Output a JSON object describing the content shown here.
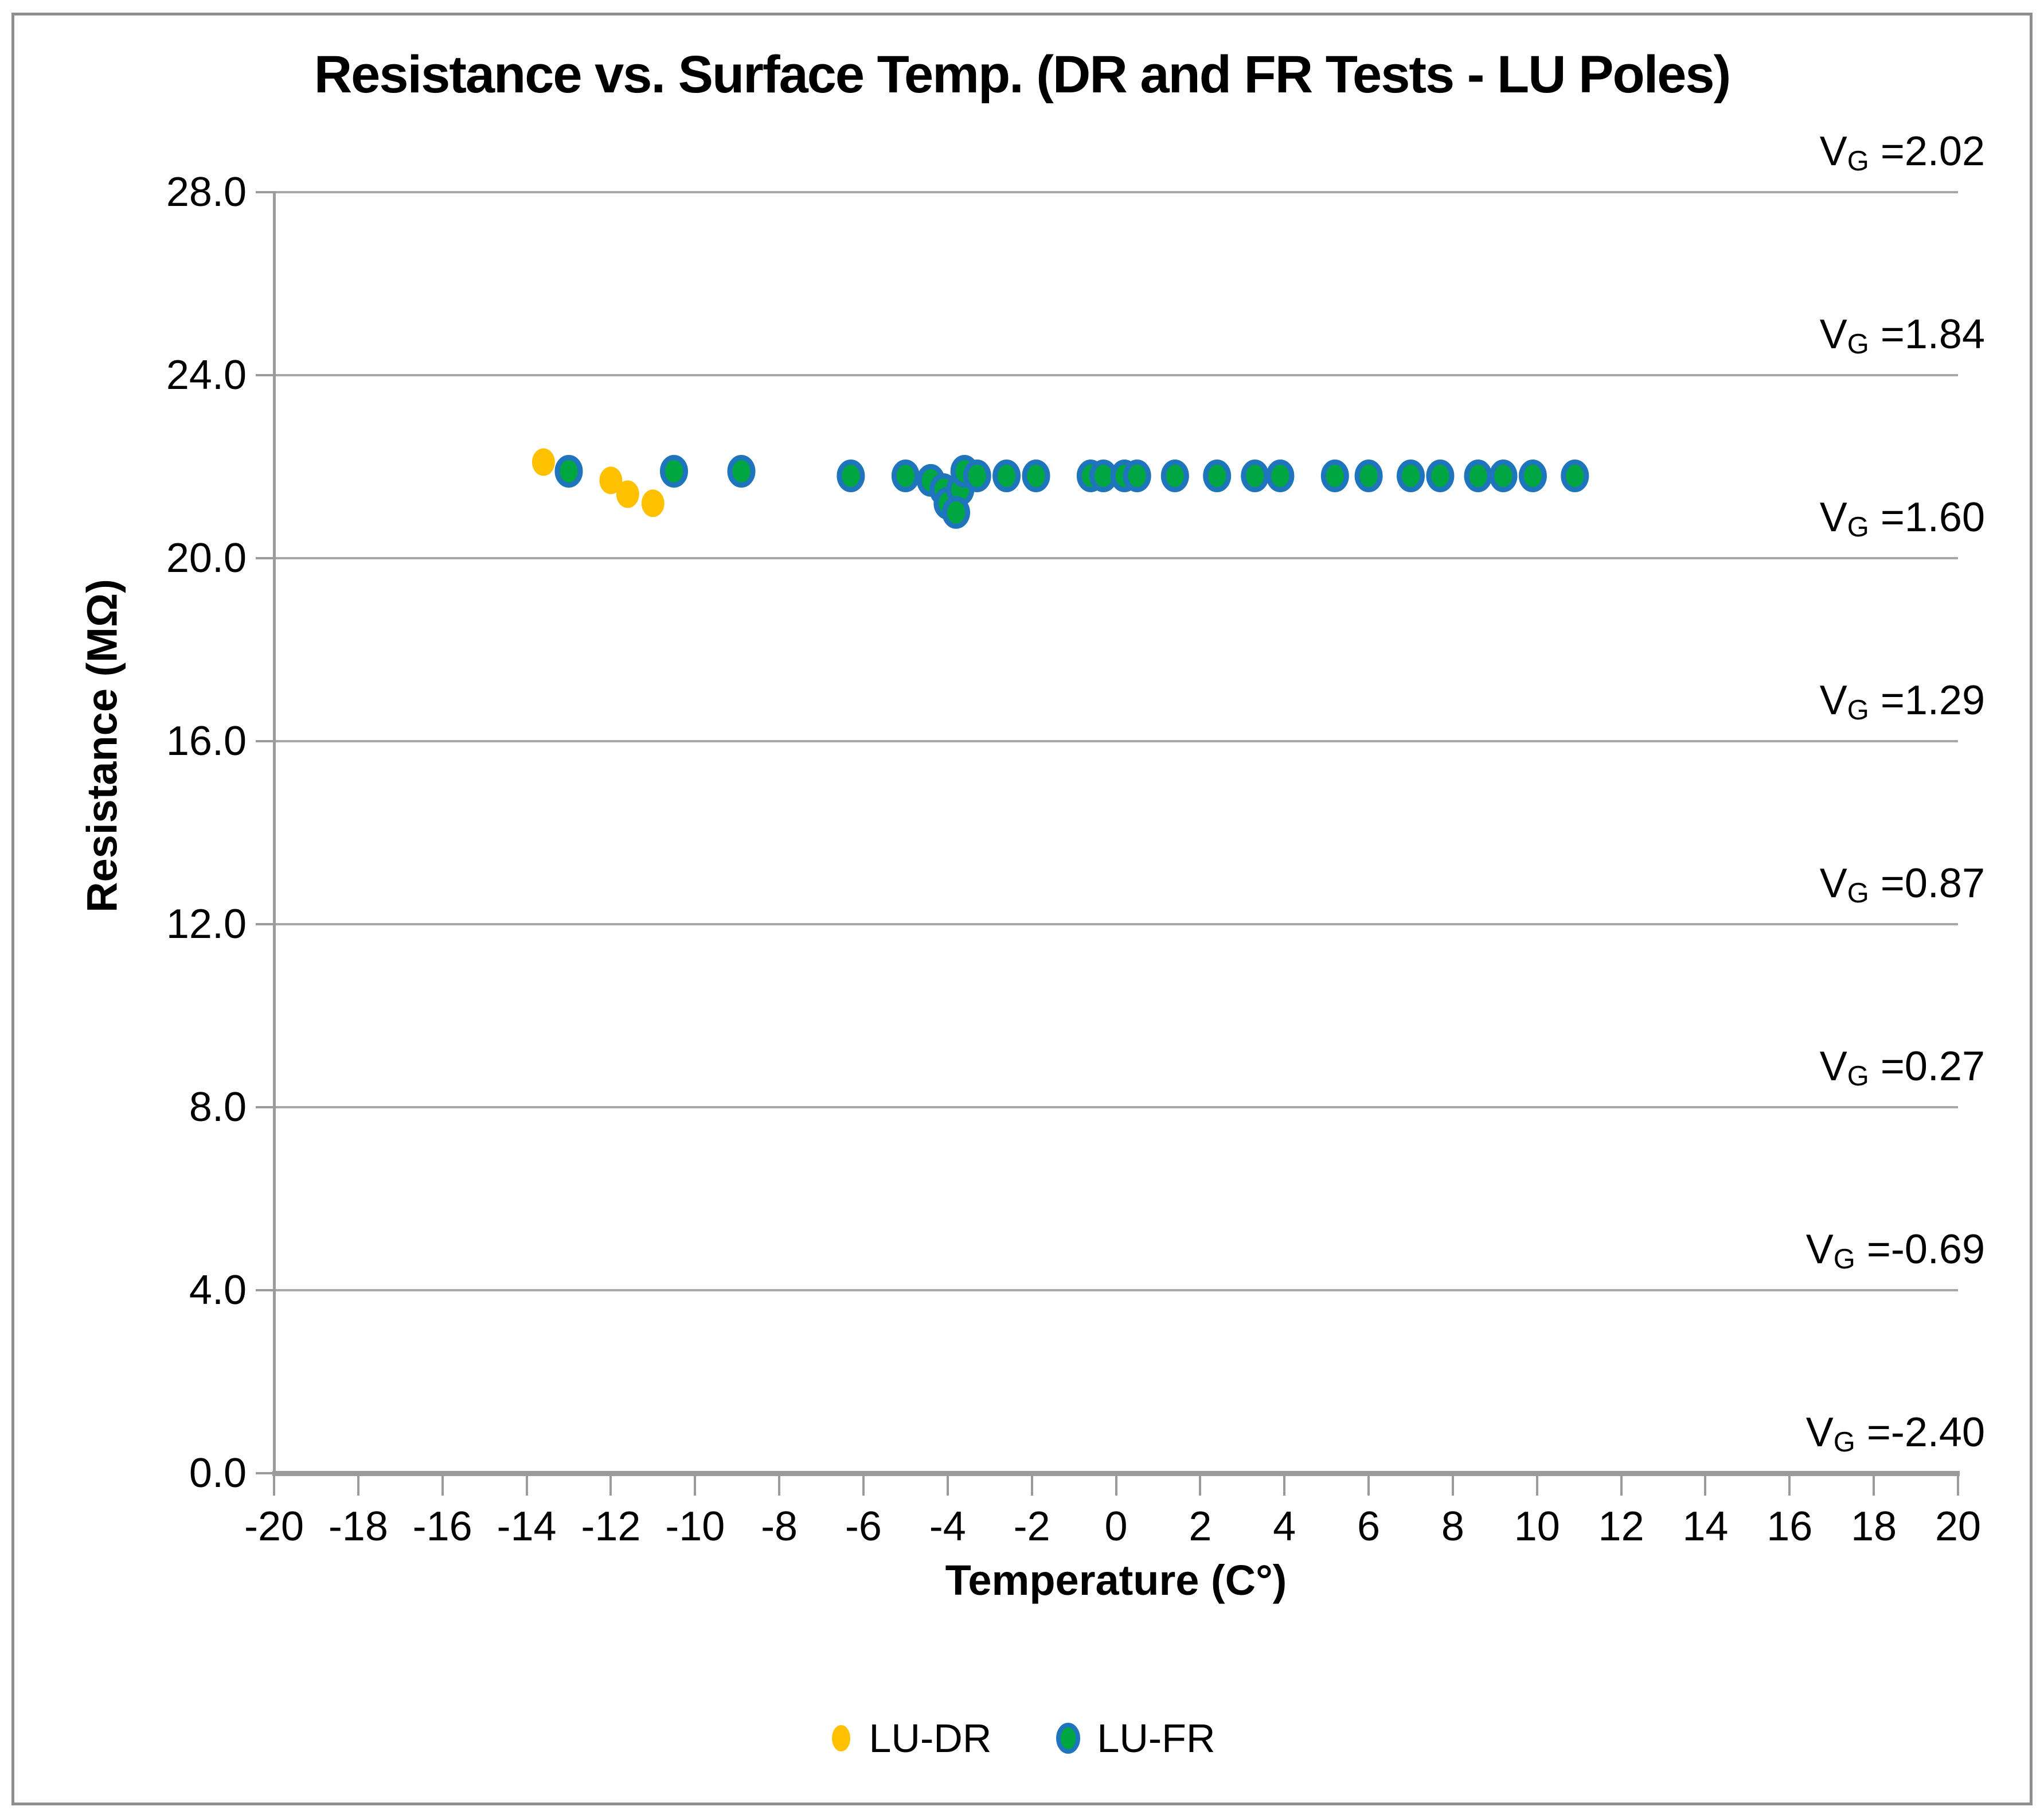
{
  "title": "Resistance vs. Surface Temp. (DR and FR Tests - LU Poles)",
  "axes": {
    "x_title": "Temperature (C°)",
    "y_title": "Resistance (MΩ)"
  },
  "legend": {
    "items": [
      {
        "label": "LU-DR",
        "marker_fill": "#FFC000",
        "marker_outline": "none"
      },
      {
        "label": "LU-FR",
        "marker_fill": "#00A640",
        "marker_outline": "#1F75BC"
      }
    ]
  },
  "colors": {
    "gridline": "#a7a7a7",
    "axis": "#9b9b9b",
    "frame": "#8e8e8e",
    "lu_dr": "#FFC000",
    "lu_fr_fill": "#00A640",
    "lu_fr_outline": "#1F75BC"
  },
  "chart_data": {
    "type": "scatter",
    "title": "Resistance vs. Surface Temp. (DR and FR Tests - LU Poles)",
    "xlabel": "Temperature (C°)",
    "ylabel": "Resistance (MΩ)",
    "xlim": [
      -20,
      20
    ],
    "ylim": [
      0,
      28
    ],
    "x_tick_labels": [
      "-20",
      "-18",
      "-16",
      "-14",
      "-12",
      "-10",
      "-8",
      "-6",
      "-4",
      "-2",
      "0",
      "2",
      "4",
      "6",
      "8",
      "10",
      "12",
      "14",
      "16",
      "18",
      "20"
    ],
    "y_tick_labels": [
      "0.0",
      "4.0",
      "8.0",
      "12.0",
      "16.0",
      "20.0",
      "24.0",
      "28.0"
    ],
    "grid": true,
    "legend_position": "bottom",
    "series": [
      {
        "name": "LU-DR",
        "color": "#FFC000",
        "outline": "none",
        "points": [
          [
            -13.6,
            22.1
          ],
          [
            -12.0,
            21.7
          ],
          [
            -11.6,
            21.4
          ],
          [
            -11.0,
            21.2
          ]
        ]
      },
      {
        "name": "LU-FR",
        "color": "#00A640",
        "outline": "#1F75BC",
        "points": [
          [
            -13.0,
            21.9
          ],
          [
            -10.5,
            21.9
          ],
          [
            -8.9,
            21.9
          ],
          [
            -6.3,
            21.8
          ],
          [
            -5.0,
            21.8
          ],
          [
            -4.4,
            21.7
          ],
          [
            -4.1,
            21.5
          ],
          [
            -4.0,
            21.2
          ],
          [
            -3.7,
            21.5
          ],
          [
            -3.8,
            21.0
          ],
          [
            -3.6,
            21.9
          ],
          [
            -3.3,
            21.8
          ],
          [
            -2.6,
            21.8
          ],
          [
            -1.9,
            21.8
          ],
          [
            -0.6,
            21.8
          ],
          [
            -0.3,
            21.8
          ],
          [
            0.2,
            21.8
          ],
          [
            0.5,
            21.8
          ],
          [
            1.4,
            21.8
          ],
          [
            2.4,
            21.8
          ],
          [
            3.3,
            21.8
          ],
          [
            3.9,
            21.8
          ],
          [
            5.2,
            21.8
          ],
          [
            6.0,
            21.8
          ],
          [
            7.0,
            21.8
          ],
          [
            7.7,
            21.8
          ],
          [
            8.6,
            21.8
          ],
          [
            9.2,
            21.8
          ],
          [
            9.9,
            21.8
          ],
          [
            10.9,
            21.8
          ]
        ]
      }
    ],
    "annotations": [
      {
        "base": "V",
        "sub": "G",
        "equals": "=",
        "value": "2.02",
        "at_y": 28
      },
      {
        "base": "V",
        "sub": "G",
        "equals": "=",
        "value": "1.84",
        "at_y": 24
      },
      {
        "base": "V",
        "sub": "G",
        "equals": "=",
        "value": "1.60",
        "at_y": 20
      },
      {
        "base": "V",
        "sub": "G",
        "equals": "=",
        "value": "1.29",
        "at_y": 16
      },
      {
        "base": "V",
        "sub": "G",
        "equals": "=",
        "value": "0.87",
        "at_y": 12
      },
      {
        "base": "V",
        "sub": "G",
        "equals": "=",
        "value": "0.27",
        "at_y": 8
      },
      {
        "base": "V",
        "sub": "G",
        "equals": "=",
        "value": "-0.69",
        "at_y": 4
      },
      {
        "base": "V",
        "sub": "G",
        "equals": "=",
        "value": "-2.40",
        "at_y": 0
      }
    ]
  }
}
